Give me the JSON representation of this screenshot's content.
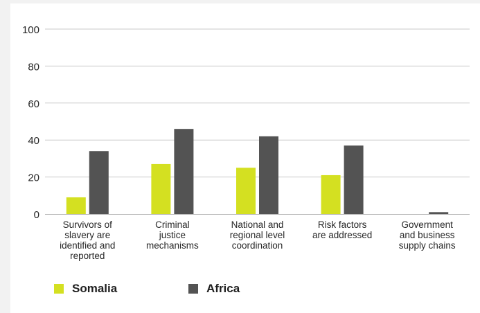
{
  "chart_data": {
    "type": "bar",
    "title": "",
    "xlabel": "",
    "ylabel": "",
    "ylim": [
      0,
      100
    ],
    "yticks": [
      0,
      20,
      40,
      60,
      80,
      100
    ],
    "grid": true,
    "legend_position": "bottom-left",
    "categories": [
      [
        "Survivors of",
        "slavery are",
        "identified and",
        "reported"
      ],
      [
        "Criminal",
        "justice",
        "mechanisms"
      ],
      [
        "National and",
        "regional level",
        "coordination"
      ],
      [
        "Risk factors",
        "are addressed"
      ],
      [
        "Government",
        "and business",
        "supply chains"
      ]
    ],
    "series": [
      {
        "name": "Somalia",
        "color": "#d4e021",
        "values": [
          9,
          27,
          25,
          21,
          0
        ]
      },
      {
        "name": "Africa",
        "color": "#535353",
        "values": [
          34,
          46,
          42,
          37,
          1
        ]
      }
    ]
  }
}
